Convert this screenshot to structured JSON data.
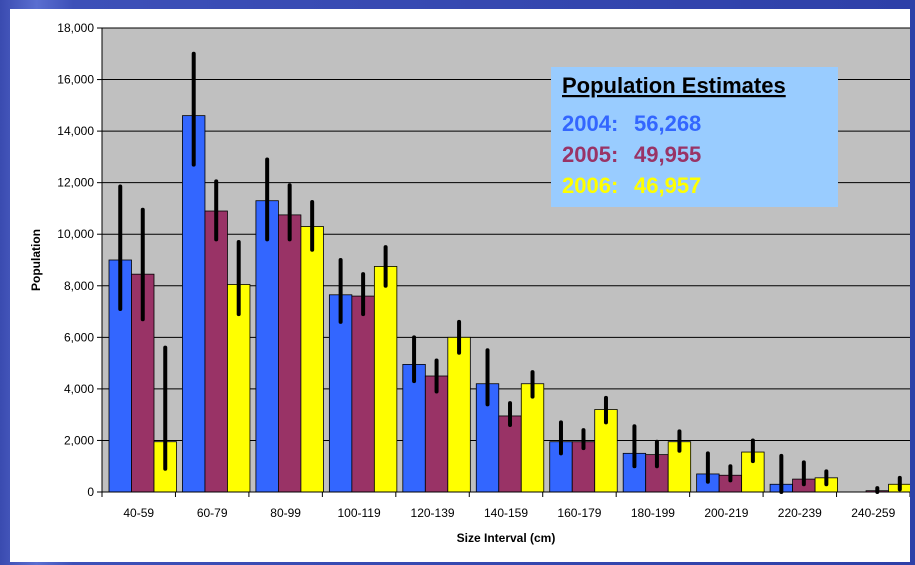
{
  "chart_data": {
    "type": "bar",
    "xlabel": "Size Interval (cm)",
    "ylabel": "Population",
    "ylim": [
      0,
      18000
    ],
    "yticks": [
      0,
      2000,
      4000,
      6000,
      8000,
      10000,
      12000,
      14000,
      16000,
      18000
    ],
    "ytick_labels": [
      "0",
      "2,000",
      "4,000",
      "6,000",
      "8,000",
      "10,000",
      "12,000",
      "14,000",
      "16,000",
      "18,000"
    ],
    "grid": true,
    "plot_background": "#c0c0c0",
    "categories": [
      "40-59",
      "60-79",
      "80-99",
      "100-119",
      "120-139",
      "140-159",
      "160-179",
      "180-199",
      "200-219",
      "220-239",
      "240-259"
    ],
    "series": [
      {
        "name": "2004",
        "color": "#3366ff",
        "values": [
          9000,
          14600,
          11300,
          7650,
          4950,
          4200,
          1950,
          1500,
          700,
          300,
          0
        ],
        "error_low": [
          7100,
          12700,
          9800,
          6600,
          4300,
          3400,
          1500,
          1000,
          400,
          0,
          0
        ],
        "error_high": [
          11850,
          17000,
          12900,
          9000,
          6000,
          5500,
          2700,
          2550,
          1500,
          1400,
          0
        ]
      },
      {
        "name": "2005",
        "color": "#993366",
        "values": [
          8450,
          10900,
          10750,
          7600,
          4500,
          2950,
          1950,
          1450,
          650,
          500,
          50
        ],
        "error_low": [
          6700,
          9800,
          9800,
          6900,
          3900,
          2600,
          1700,
          1000,
          450,
          300,
          0
        ],
        "error_high": [
          10950,
          12050,
          11900,
          8450,
          5100,
          3450,
          2400,
          1950,
          1000,
          1150,
          150
        ]
      },
      {
        "name": "2006",
        "color": "#ffff00",
        "values": [
          1950,
          8050,
          10300,
          8750,
          6000,
          4200,
          3200,
          1950,
          1550,
          550,
          300
        ],
        "error_low": [
          900,
          6900,
          9400,
          8000,
          5400,
          3700,
          2700,
          1600,
          1200,
          300,
          100
        ],
        "error_high": [
          5600,
          9700,
          11250,
          9500,
          6600,
          4650,
          3650,
          2350,
          2000,
          800,
          550
        ]
      }
    ]
  },
  "legend_box": {
    "title": "Population Estimates",
    "entries": [
      {
        "label": "2004:",
        "value": "56,268",
        "color": "#3366ff"
      },
      {
        "label": "2005:",
        "value": "49,955",
        "color": "#993366"
      },
      {
        "label": "2006:",
        "value": "46,957",
        "color": "#ffff00"
      }
    ],
    "background": "#99ccff"
  }
}
